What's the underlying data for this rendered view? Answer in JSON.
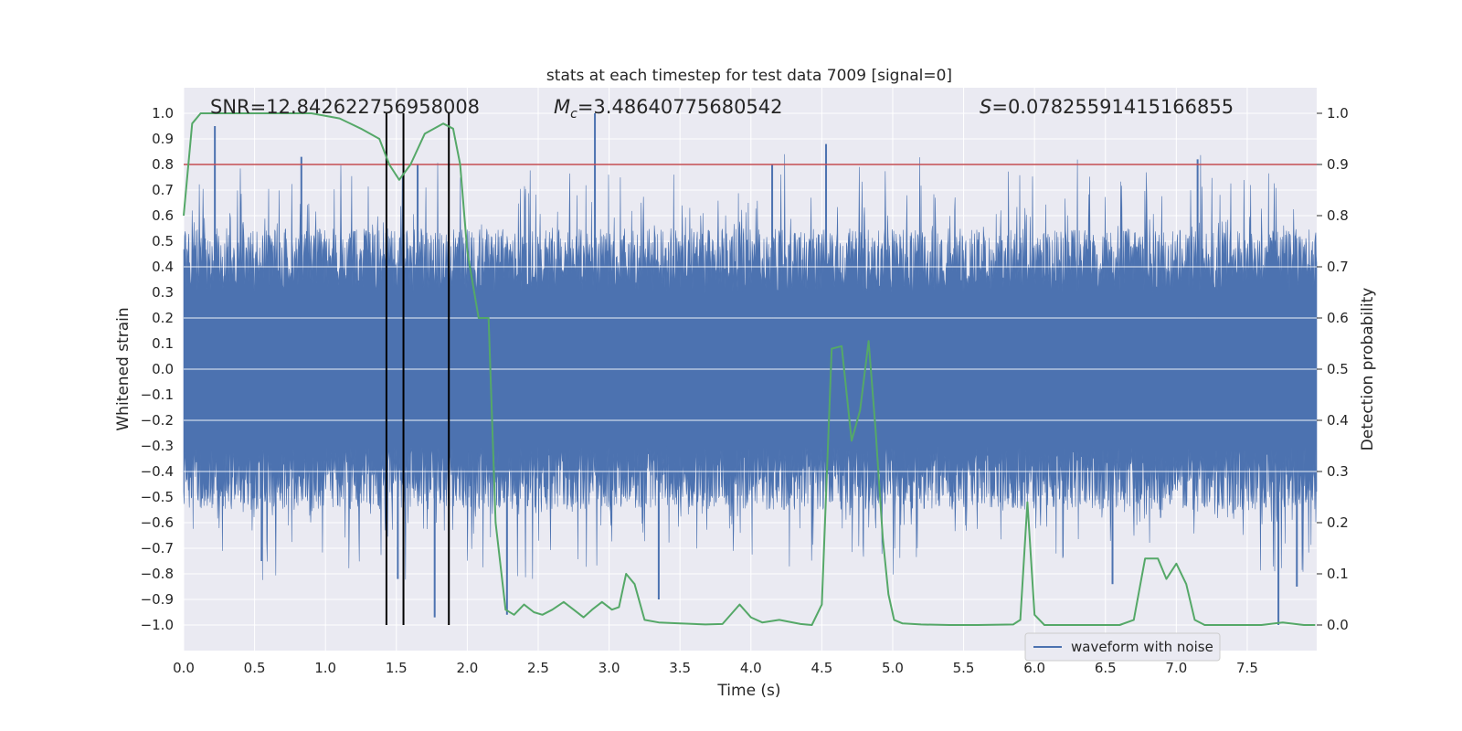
{
  "chart_data": {
    "type": "line",
    "title": "stats at each timestep for test data 7009 [signal=0]",
    "xlabel": "Time (s)",
    "ylabel_left": "Whitened strain",
    "ylabel_right": "Detection probability",
    "xlim": [
      0.0,
      7.99
    ],
    "ylim_left": [
      -1.1,
      1.1
    ],
    "ylim_right": [
      -0.05,
      1.05
    ],
    "x_ticks": [
      "0.0",
      "0.5",
      "1.0",
      "1.5",
      "2.0",
      "2.5",
      "3.0",
      "3.5",
      "4.0",
      "4.5",
      "5.0",
      "5.5",
      "6.0",
      "6.5",
      "7.0",
      "7.5"
    ],
    "y_left_ticks": [
      "1.0",
      "0.9",
      "0.8",
      "0.7",
      "0.6",
      "0.5",
      "0.4",
      "0.3",
      "0.2",
      "0.1",
      "0.0",
      "-0.1",
      "-0.2",
      "-0.3",
      "-0.4",
      "-0.5",
      "-0.6",
      "-0.7",
      "-0.8",
      "-0.9",
      "-1.0"
    ],
    "y_right_ticks": [
      "1.0",
      "0.9",
      "0.8",
      "0.7",
      "0.6",
      "0.5",
      "0.4",
      "0.3",
      "0.2",
      "0.1",
      "0.0"
    ],
    "grid": true,
    "legend_position": "lower-right",
    "annotations": {
      "snr": "SNR=12.842622756958008",
      "mc_symbol": "M",
      "mc_sub": "c",
      "mc_value": "=3.48640775680542",
      "s_symbol": "S",
      "s_value": "=0.07825591415166855"
    },
    "threshold": {
      "value": 0.8,
      "axis": "left",
      "color": "#c44e52"
    },
    "vertical_markers": [
      1.43,
      1.55,
      1.87
    ],
    "series": [
      {
        "name": "waveform with noise",
        "axis": "left",
        "color": "#4c72b0",
        "envelope": {
          "typical_upper": 0.4,
          "typical_lower": -0.4,
          "core": 0.2
        },
        "spikes": [
          {
            "x": 0.22,
            "y": 0.95
          },
          {
            "x": 0.83,
            "y": 0.83
          },
          {
            "x": 1.65,
            "y": 0.8
          },
          {
            "x": 2.9,
            "y": 1.0
          },
          {
            "x": 4.15,
            "y": 0.8
          },
          {
            "x": 4.53,
            "y": 0.88
          },
          {
            "x": 7.15,
            "y": 0.82
          },
          {
            "x": 1.51,
            "y": -0.82
          },
          {
            "x": 1.77,
            "y": -0.97
          },
          {
            "x": 2.28,
            "y": -0.96
          },
          {
            "x": 3.35,
            "y": -0.9
          },
          {
            "x": 7.72,
            "y": -1.0
          },
          {
            "x": 6.55,
            "y": -0.84
          },
          {
            "x": 7.85,
            "y": -0.85
          },
          {
            "x": 0.55,
            "y": -0.75
          }
        ]
      },
      {
        "name": "",
        "axis": "right",
        "color": "#55a868",
        "x": [
          0.0,
          0.06,
          0.12,
          0.5,
          0.9,
          1.1,
          1.25,
          1.38,
          1.45,
          1.52,
          1.6,
          1.7,
          1.83,
          1.9,
          1.95,
          2.0,
          2.08,
          2.15,
          2.2,
          2.27,
          2.33,
          2.4,
          2.47,
          2.53,
          2.6,
          2.68,
          2.75,
          2.82,
          2.88,
          2.95,
          3.02,
          3.07,
          3.12,
          3.18,
          3.25,
          3.35,
          3.5,
          3.68,
          3.8,
          3.92,
          4.0,
          4.08,
          4.2,
          4.35,
          4.43,
          4.5,
          4.57,
          4.64,
          4.71,
          4.77,
          4.83,
          4.88,
          4.93,
          4.97,
          5.01,
          5.07,
          5.2,
          5.4,
          5.6,
          5.85,
          5.9,
          5.95,
          6.0,
          6.07,
          6.3,
          6.6,
          6.7,
          6.78,
          6.87,
          6.93,
          7.0,
          7.07,
          7.13,
          7.2,
          7.4,
          7.6,
          7.75,
          7.9,
          7.98
        ],
        "values": [
          0.8,
          0.98,
          1.0,
          1.0,
          1.0,
          0.99,
          0.97,
          0.95,
          0.9,
          0.87,
          0.9,
          0.96,
          0.98,
          0.97,
          0.9,
          0.73,
          0.6,
          0.6,
          0.2,
          0.03,
          0.02,
          0.04,
          0.025,
          0.02,
          0.03,
          0.045,
          0.03,
          0.015,
          0.03,
          0.045,
          0.03,
          0.035,
          0.1,
          0.08,
          0.01,
          0.005,
          0.003,
          0.001,
          0.002,
          0.04,
          0.015,
          0.005,
          0.01,
          0.002,
          0.0,
          0.04,
          0.54,
          0.545,
          0.36,
          0.42,
          0.555,
          0.38,
          0.17,
          0.06,
          0.01,
          0.003,
          0.001,
          0.0,
          0.0,
          0.001,
          0.01,
          0.24,
          0.02,
          0.0,
          0.0,
          0.0,
          0.01,
          0.13,
          0.13,
          0.09,
          0.12,
          0.08,
          0.01,
          0.0,
          0.0,
          0.0,
          0.005,
          0.0,
          0.0
        ]
      }
    ]
  }
}
